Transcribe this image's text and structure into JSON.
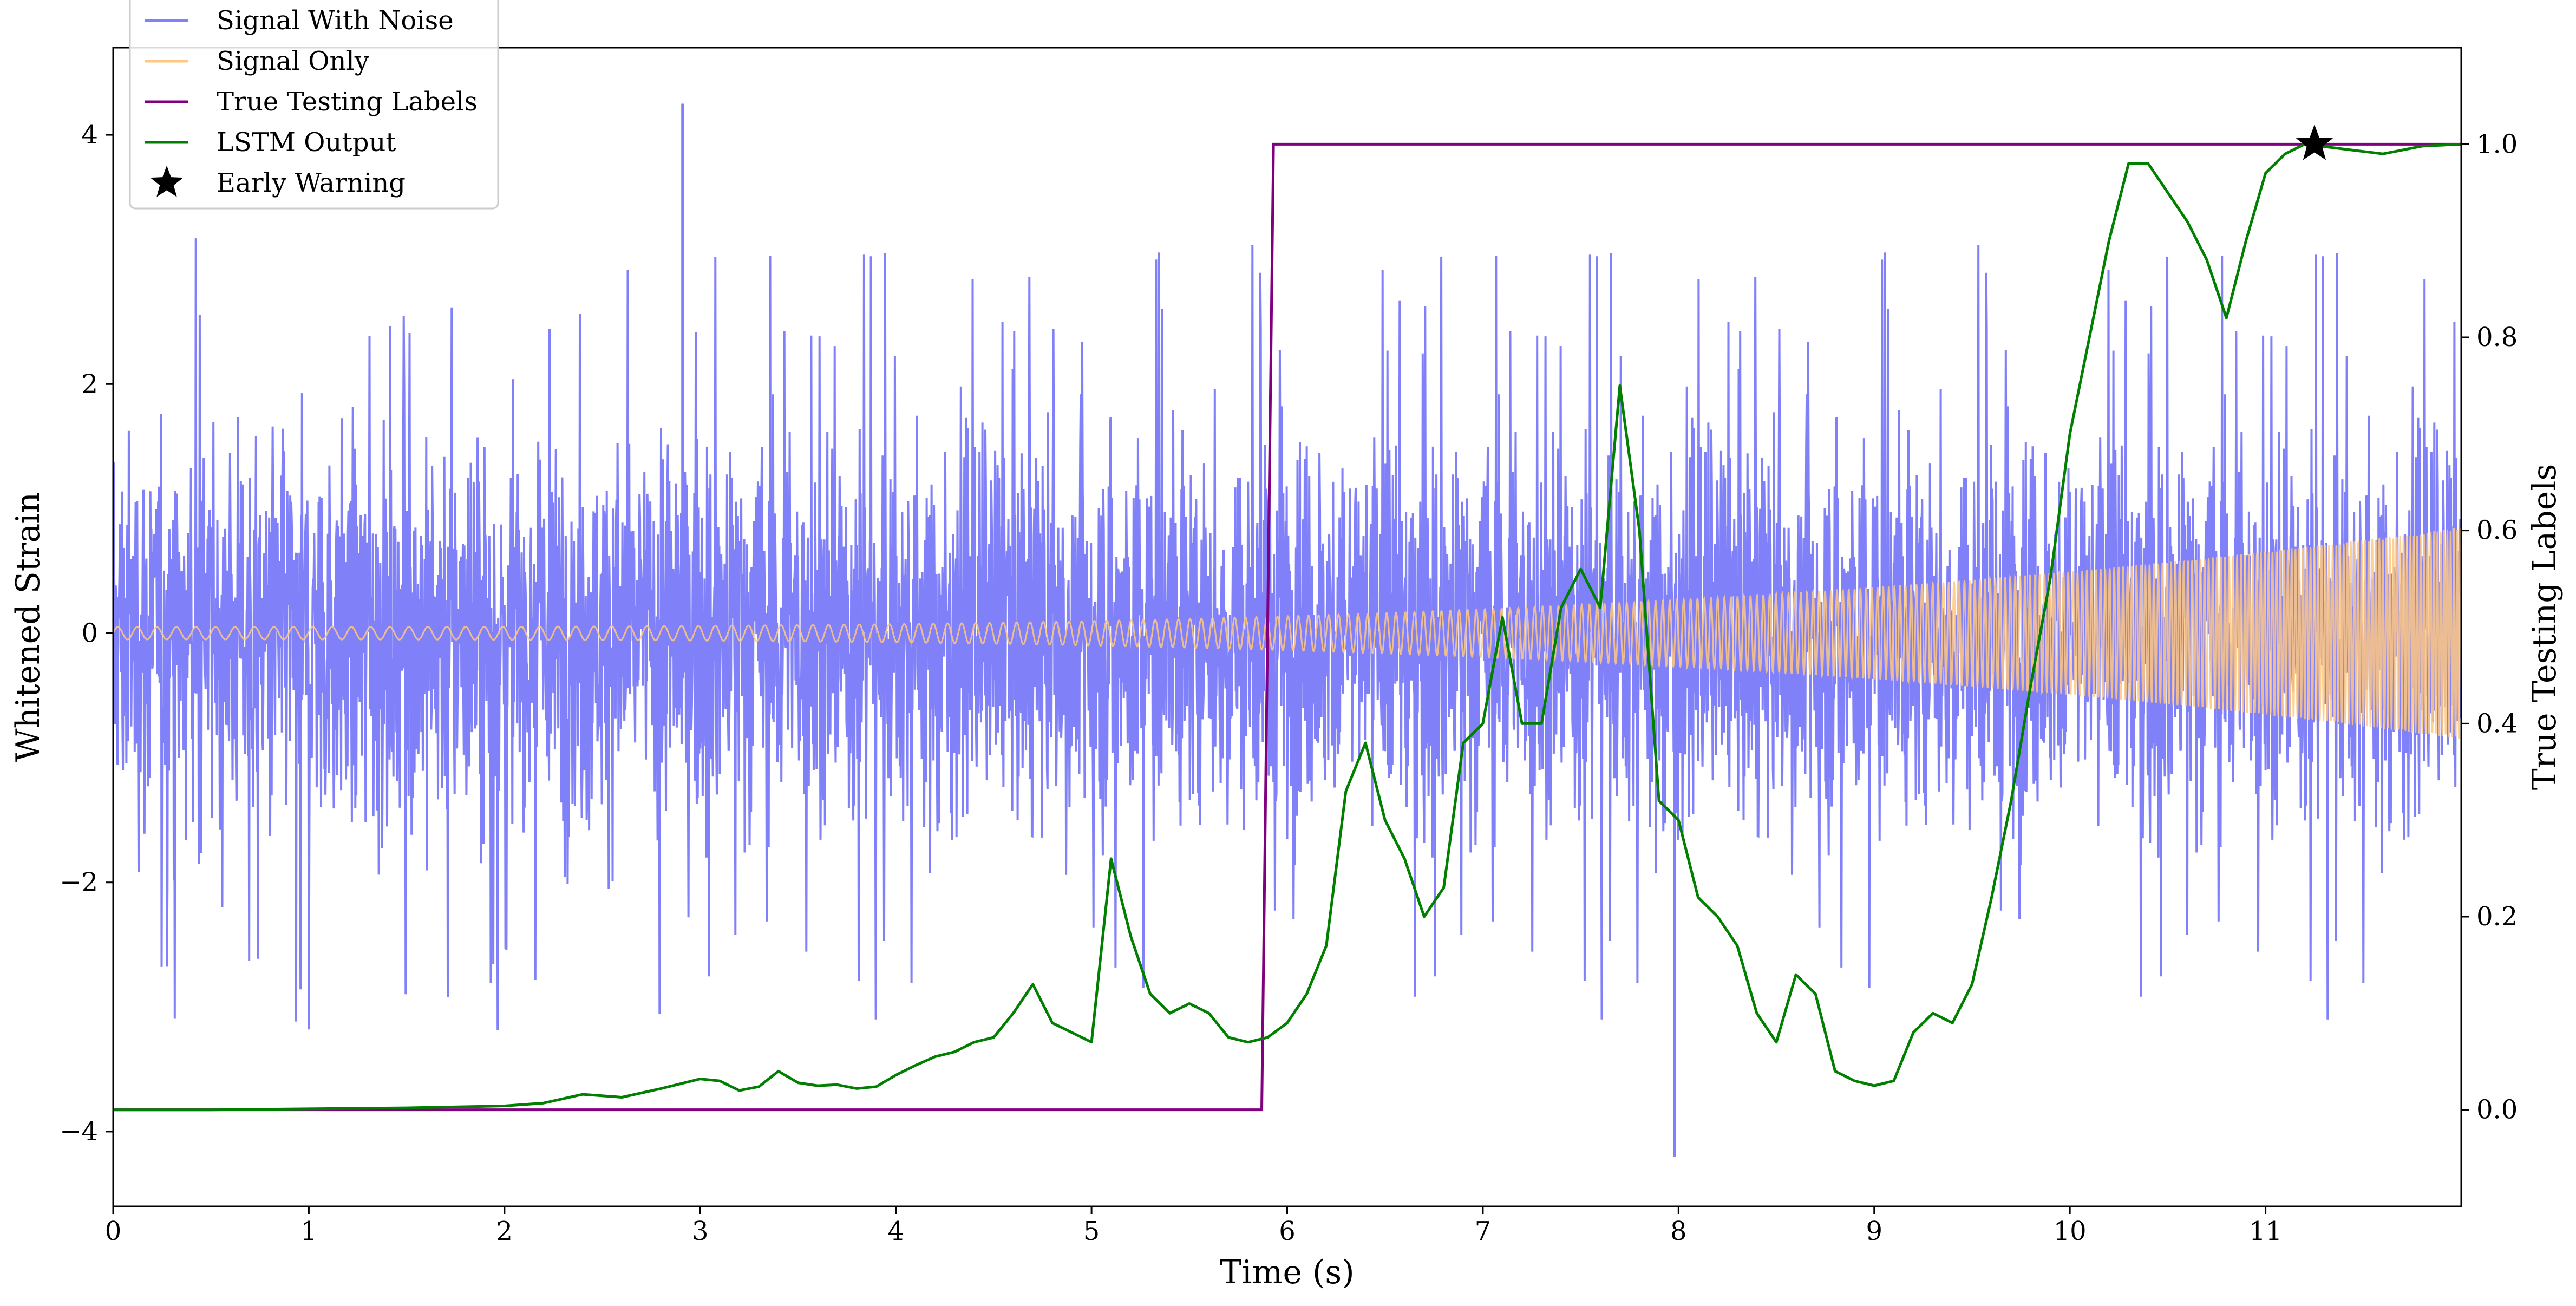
{
  "chart_data": {
    "type": "line",
    "xlabel": "Time (s)",
    "ylabel": "Whitened Strain",
    "y2label": "True Testing Labels",
    "xlim": [
      0,
      12
    ],
    "ylim": [
      -4.6,
      4.7
    ],
    "y2lim": [
      -0.1,
      1.1
    ],
    "x_ticks": [
      0,
      1,
      2,
      3,
      4,
      5,
      6,
      7,
      8,
      9,
      10,
      11
    ],
    "x_tick_labels": [
      "0",
      "1",
      "2",
      "3",
      "4",
      "5",
      "6",
      "7",
      "8",
      "9",
      "10",
      "11"
    ],
    "y_ticks": [
      -4,
      -2,
      0,
      2,
      4
    ],
    "y_tick_labels": [
      "−4",
      "−2",
      "0",
      "2",
      "4"
    ],
    "y2_ticks": [
      0.0,
      0.2,
      0.4,
      0.6,
      0.8,
      1.0
    ],
    "y2_tick_labels": [
      "0.0",
      "0.2",
      "0.4",
      "0.6",
      "0.8",
      "1.0"
    ],
    "legend_placement": "top-left",
    "colors": {
      "signal_with_noise": "#8080f8",
      "signal_only": "#ffc880",
      "true_labels": "#800080",
      "lstm_output": "#007f00",
      "early_warning": "#000000"
    },
    "noise_envelope": {
      "description_free": true,
      "typical_amplitude": 1.3,
      "peak_amplitude": 3.2,
      "max_spike": 4.25,
      "min_spike": -4.2
    },
    "signal_only": {
      "start_amplitude": 0.05,
      "end_amplitude": 0.85,
      "start_frequency_hz": 10,
      "end_frequency_hz": 60
    },
    "series": [
      {
        "name": "Signal With Noise",
        "axis": "left",
        "style": "noisy"
      },
      {
        "name": "Signal Only",
        "axis": "left",
        "style": "chirp"
      },
      {
        "name": "True Testing Labels",
        "axis": "right",
        "x": [
          0,
          5.87,
          5.93,
          12
        ],
        "y": [
          0,
          0,
          1,
          1
        ]
      },
      {
        "name": "LSTM Output",
        "axis": "right",
        "x": [
          0,
          0.5,
          1.0,
          1.5,
          2.0,
          2.2,
          2.4,
          2.6,
          2.8,
          3.0,
          3.1,
          3.2,
          3.3,
          3.4,
          3.5,
          3.6,
          3.7,
          3.8,
          3.9,
          4.0,
          4.1,
          4.2,
          4.3,
          4.4,
          4.5,
          4.6,
          4.7,
          4.8,
          4.9,
          5.0,
          5.1,
          5.2,
          5.3,
          5.4,
          5.5,
          5.6,
          5.7,
          5.8,
          5.9,
          6.0,
          6.1,
          6.2,
          6.3,
          6.4,
          6.5,
          6.6,
          6.7,
          6.8,
          6.9,
          7.0,
          7.1,
          7.2,
          7.3,
          7.4,
          7.5,
          7.6,
          7.7,
          7.8,
          7.9,
          8.0,
          8.1,
          8.2,
          8.3,
          8.4,
          8.5,
          8.6,
          8.7,
          8.8,
          8.9,
          9.0,
          9.1,
          9.2,
          9.3,
          9.4,
          9.5,
          9.6,
          9.7,
          9.8,
          9.9,
          10.0,
          10.1,
          10.2,
          10.3,
          10.4,
          10.5,
          10.6,
          10.7,
          10.8,
          10.9,
          11.0,
          11.1,
          11.2,
          11.4,
          11.6,
          11.8,
          12.0
        ],
        "y": [
          0.0,
          0.0,
          0.001,
          0.002,
          0.004,
          0.007,
          0.016,
          0.013,
          0.022,
          0.032,
          0.03,
          0.02,
          0.024,
          0.04,
          0.028,
          0.025,
          0.026,
          0.022,
          0.024,
          0.036,
          0.046,
          0.055,
          0.06,
          0.07,
          0.075,
          0.1,
          0.13,
          0.09,
          0.08,
          0.07,
          0.26,
          0.18,
          0.12,
          0.1,
          0.11,
          0.1,
          0.075,
          0.07,
          0.075,
          0.09,
          0.12,
          0.17,
          0.33,
          0.38,
          0.3,
          0.26,
          0.2,
          0.23,
          0.38,
          0.4,
          0.51,
          0.4,
          0.4,
          0.52,
          0.56,
          0.52,
          0.75,
          0.6,
          0.32,
          0.3,
          0.22,
          0.2,
          0.17,
          0.1,
          0.07,
          0.14,
          0.12,
          0.04,
          0.03,
          0.025,
          0.03,
          0.08,
          0.1,
          0.09,
          0.13,
          0.22,
          0.32,
          0.44,
          0.55,
          0.7,
          0.8,
          0.9,
          0.98,
          0.98,
          0.95,
          0.92,
          0.88,
          0.82,
          0.9,
          0.97,
          0.99,
          1.0,
          0.995,
          0.99,
          0.998,
          1.0
        ]
      },
      {
        "name": "Early Warning",
        "axis": "right",
        "style": "marker",
        "x": [
          11.25
        ],
        "y": [
          1.0
        ]
      }
    ],
    "legend": [
      "Signal With Noise",
      "Signal Only",
      "True Testing Labels",
      "LSTM Output",
      "Early Warning"
    ]
  }
}
